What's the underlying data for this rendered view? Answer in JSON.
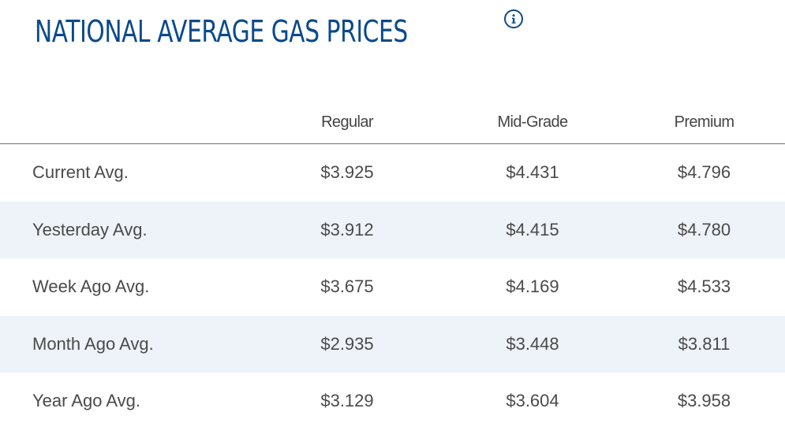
{
  "title": "NATIONAL AVERAGE GAS PRICES",
  "info_icon": "info-icon",
  "colors": {
    "title": "#0b4a8b",
    "text": "#4a4a4a",
    "row_shade": "#eef3f9",
    "divider": "#6e6e6e"
  },
  "table": {
    "headers": [
      "",
      "Regular",
      "Mid-Grade",
      "Premium"
    ],
    "rows": [
      {
        "label": "Current Avg.",
        "regular": "$3.925",
        "mid_grade": "$4.431",
        "premium": "$4.796"
      },
      {
        "label": "Yesterday Avg.",
        "regular": "$3.912",
        "mid_grade": "$4.415",
        "premium": "$4.780"
      },
      {
        "label": "Week Ago Avg.",
        "regular": "$3.675",
        "mid_grade": "$4.169",
        "premium": "$4.533"
      },
      {
        "label": "Month Ago Avg.",
        "regular": "$2.935",
        "mid_grade": "$3.448",
        "premium": "$3.811"
      },
      {
        "label": "Year Ago Avg.",
        "regular": "$3.129",
        "mid_grade": "$3.604",
        "premium": "$3.958"
      }
    ]
  }
}
